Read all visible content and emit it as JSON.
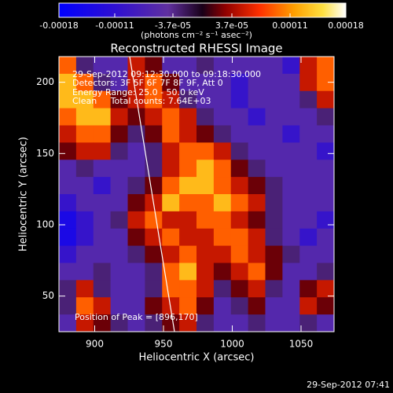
{
  "chart_data": {
    "type": "heatmap",
    "title": "Reconstructed RHESSI Image",
    "xlabel": "Heliocentric X (arcsec)",
    "ylabel": "Heliocentric Y (arcsec)",
    "colorbar_label": "(photons cm⁻² s⁻¹ asec⁻²)",
    "annotations": [
      "29-Sep-2012 09:12:30.000 to 09:18:30.000",
      "Detectors: 3F 5F 6F 7F 8F 9F, Att 0",
      "Energy Range: 25.0 - 50.0 keV",
      "Clean     Total counts: 7.64E+03"
    ],
    "peak_note": "Position of Peak = [896,170]",
    "timestamp": "29-Sep-2012 07:41",
    "xlim": [
      874,
      1074
    ],
    "ylim": [
      25,
      218
    ],
    "xticks": [
      900,
      950,
      1000,
      1050
    ],
    "yticks": [
      50,
      100,
      150,
      200
    ],
    "clim": [
      -0.00018,
      0.00018
    ],
    "cticks": [
      -0.00018,
      -0.00011,
      {
        "value": -3.7e-05,
        "label": "-3.7e-05"
      },
      {
        "value": 3.7e-05,
        "label": "3.7e-05"
      },
      0.00011,
      0.00018
    ],
    "colorscale": [
      [
        0,
        "#0000ff"
      ],
      [
        0.2,
        "#3010d0"
      ],
      [
        0.38,
        "#6030a0"
      ],
      [
        0.5,
        "#180018"
      ],
      [
        0.58,
        "#900000"
      ],
      [
        0.7,
        "#ff3000"
      ],
      [
        0.82,
        "#ffa000"
      ],
      [
        0.92,
        "#ffe040"
      ],
      [
        1,
        "#ffffff"
      ]
    ],
    "z": [
      [
        9e-05,
        -3e-05,
        -6e-05,
        -6e-05,
        5e-05,
        2e-05,
        -6e-05,
        -6e-05,
        -3e-05,
        -6e-05,
        -6e-05,
        -6e-05,
        -6e-05,
        -0.0001,
        5e-05,
        9e-05
      ],
      [
        0.00013,
        9e-05,
        -3e-05,
        -6e-05,
        5e-05,
        9e-05,
        2e-05,
        -6e-05,
        -6e-05,
        -6e-05,
        -0.0001,
        -6e-05,
        -6e-05,
        -6e-05,
        5e-05,
        9e-05
      ],
      [
        0.00013,
        0.00013,
        9e-05,
        2e-05,
        5e-05,
        9e-05,
        5e-05,
        -3e-05,
        -6e-05,
        -6e-05,
        -0.0001,
        -6e-05,
        -6e-05,
        -6e-05,
        -3e-05,
        5e-05
      ],
      [
        9e-05,
        0.00013,
        0.00013,
        5e-05,
        2e-05,
        5e-05,
        9e-05,
        5e-05,
        -3e-05,
        -6e-05,
        -6e-05,
        -0.0001,
        -6e-05,
        -6e-05,
        -6e-05,
        -3e-05
      ],
      [
        5e-05,
        9e-05,
        9e-05,
        2e-05,
        -3e-05,
        2e-05,
        9e-05,
        5e-05,
        2e-05,
        -3e-05,
        -6e-05,
        -6e-05,
        -6e-05,
        -0.0001,
        -6e-05,
        -6e-05
      ],
      [
        2e-05,
        5e-05,
        5e-05,
        -3e-05,
        -6e-05,
        -3e-05,
        5e-05,
        9e-05,
        9e-05,
        5e-05,
        -3e-05,
        -6e-05,
        -6e-05,
        -6e-05,
        -6e-05,
        -0.0001
      ],
      [
        -6e-05,
        -3e-05,
        -6e-05,
        -6e-05,
        -6e-05,
        -3e-05,
        5e-05,
        9e-05,
        0.00013,
        9e-05,
        2e-05,
        -3e-05,
        -6e-05,
        -6e-05,
        -6e-05,
        -6e-05
      ],
      [
        -6e-05,
        -6e-05,
        -0.0001,
        -6e-05,
        -3e-05,
        2e-05,
        9e-05,
        0.00013,
        0.00013,
        9e-05,
        5e-05,
        2e-05,
        -3e-05,
        -6e-05,
        -6e-05,
        -6e-05
      ],
      [
        -0.0001,
        -6e-05,
        -6e-05,
        -6e-05,
        2e-05,
        5e-05,
        0.00013,
        9e-05,
        9e-05,
        0.00013,
        9e-05,
        5e-05,
        -3e-05,
        -6e-05,
        -6e-05,
        -6e-05
      ],
      [
        -0.00014,
        -0.0001,
        -6e-05,
        -3e-05,
        5e-05,
        9e-05,
        5e-05,
        5e-05,
        9e-05,
        9e-05,
        5e-05,
        2e-05,
        -3e-05,
        -6e-05,
        -6e-05,
        -0.0001
      ],
      [
        -0.00014,
        -0.0001,
        -6e-05,
        -6e-05,
        2e-05,
        5e-05,
        9e-05,
        5e-05,
        5e-05,
        9e-05,
        9e-05,
        5e-05,
        -3e-05,
        -6e-05,
        -0.0001,
        -6e-05
      ],
      [
        -0.0001,
        -6e-05,
        -6e-05,
        -6e-05,
        -3e-05,
        2e-05,
        5e-05,
        9e-05,
        5e-05,
        5e-05,
        9e-05,
        5e-05,
        2e-05,
        -3e-05,
        -6e-05,
        -6e-05
      ],
      [
        -6e-05,
        -6e-05,
        -3e-05,
        -6e-05,
        -6e-05,
        -3e-05,
        9e-05,
        0.00013,
        5e-05,
        2e-05,
        5e-05,
        9e-05,
        2e-05,
        -6e-05,
        -6e-05,
        -3e-05
      ],
      [
        -3e-05,
        5e-05,
        -3e-05,
        -6e-05,
        -6e-05,
        -3e-05,
        9e-05,
        9e-05,
        5e-05,
        -3e-05,
        2e-05,
        5e-05,
        -3e-05,
        -6e-05,
        2e-05,
        5e-05
      ],
      [
        -3e-05,
        9e-05,
        5e-05,
        -6e-05,
        -6e-05,
        2e-05,
        5e-05,
        9e-05,
        2e-05,
        -6e-05,
        -3e-05,
        2e-05,
        -6e-05,
        -6e-05,
        5e-05,
        2e-05
      ],
      [
        -6e-05,
        5e-05,
        2e-05,
        -3e-05,
        -6e-05,
        -3e-05,
        2e-05,
        5e-05,
        -3e-05,
        -6e-05,
        -6e-05,
        -3e-05,
        -6e-05,
        -6e-05,
        -3e-05,
        -6e-05
      ]
    ]
  }
}
